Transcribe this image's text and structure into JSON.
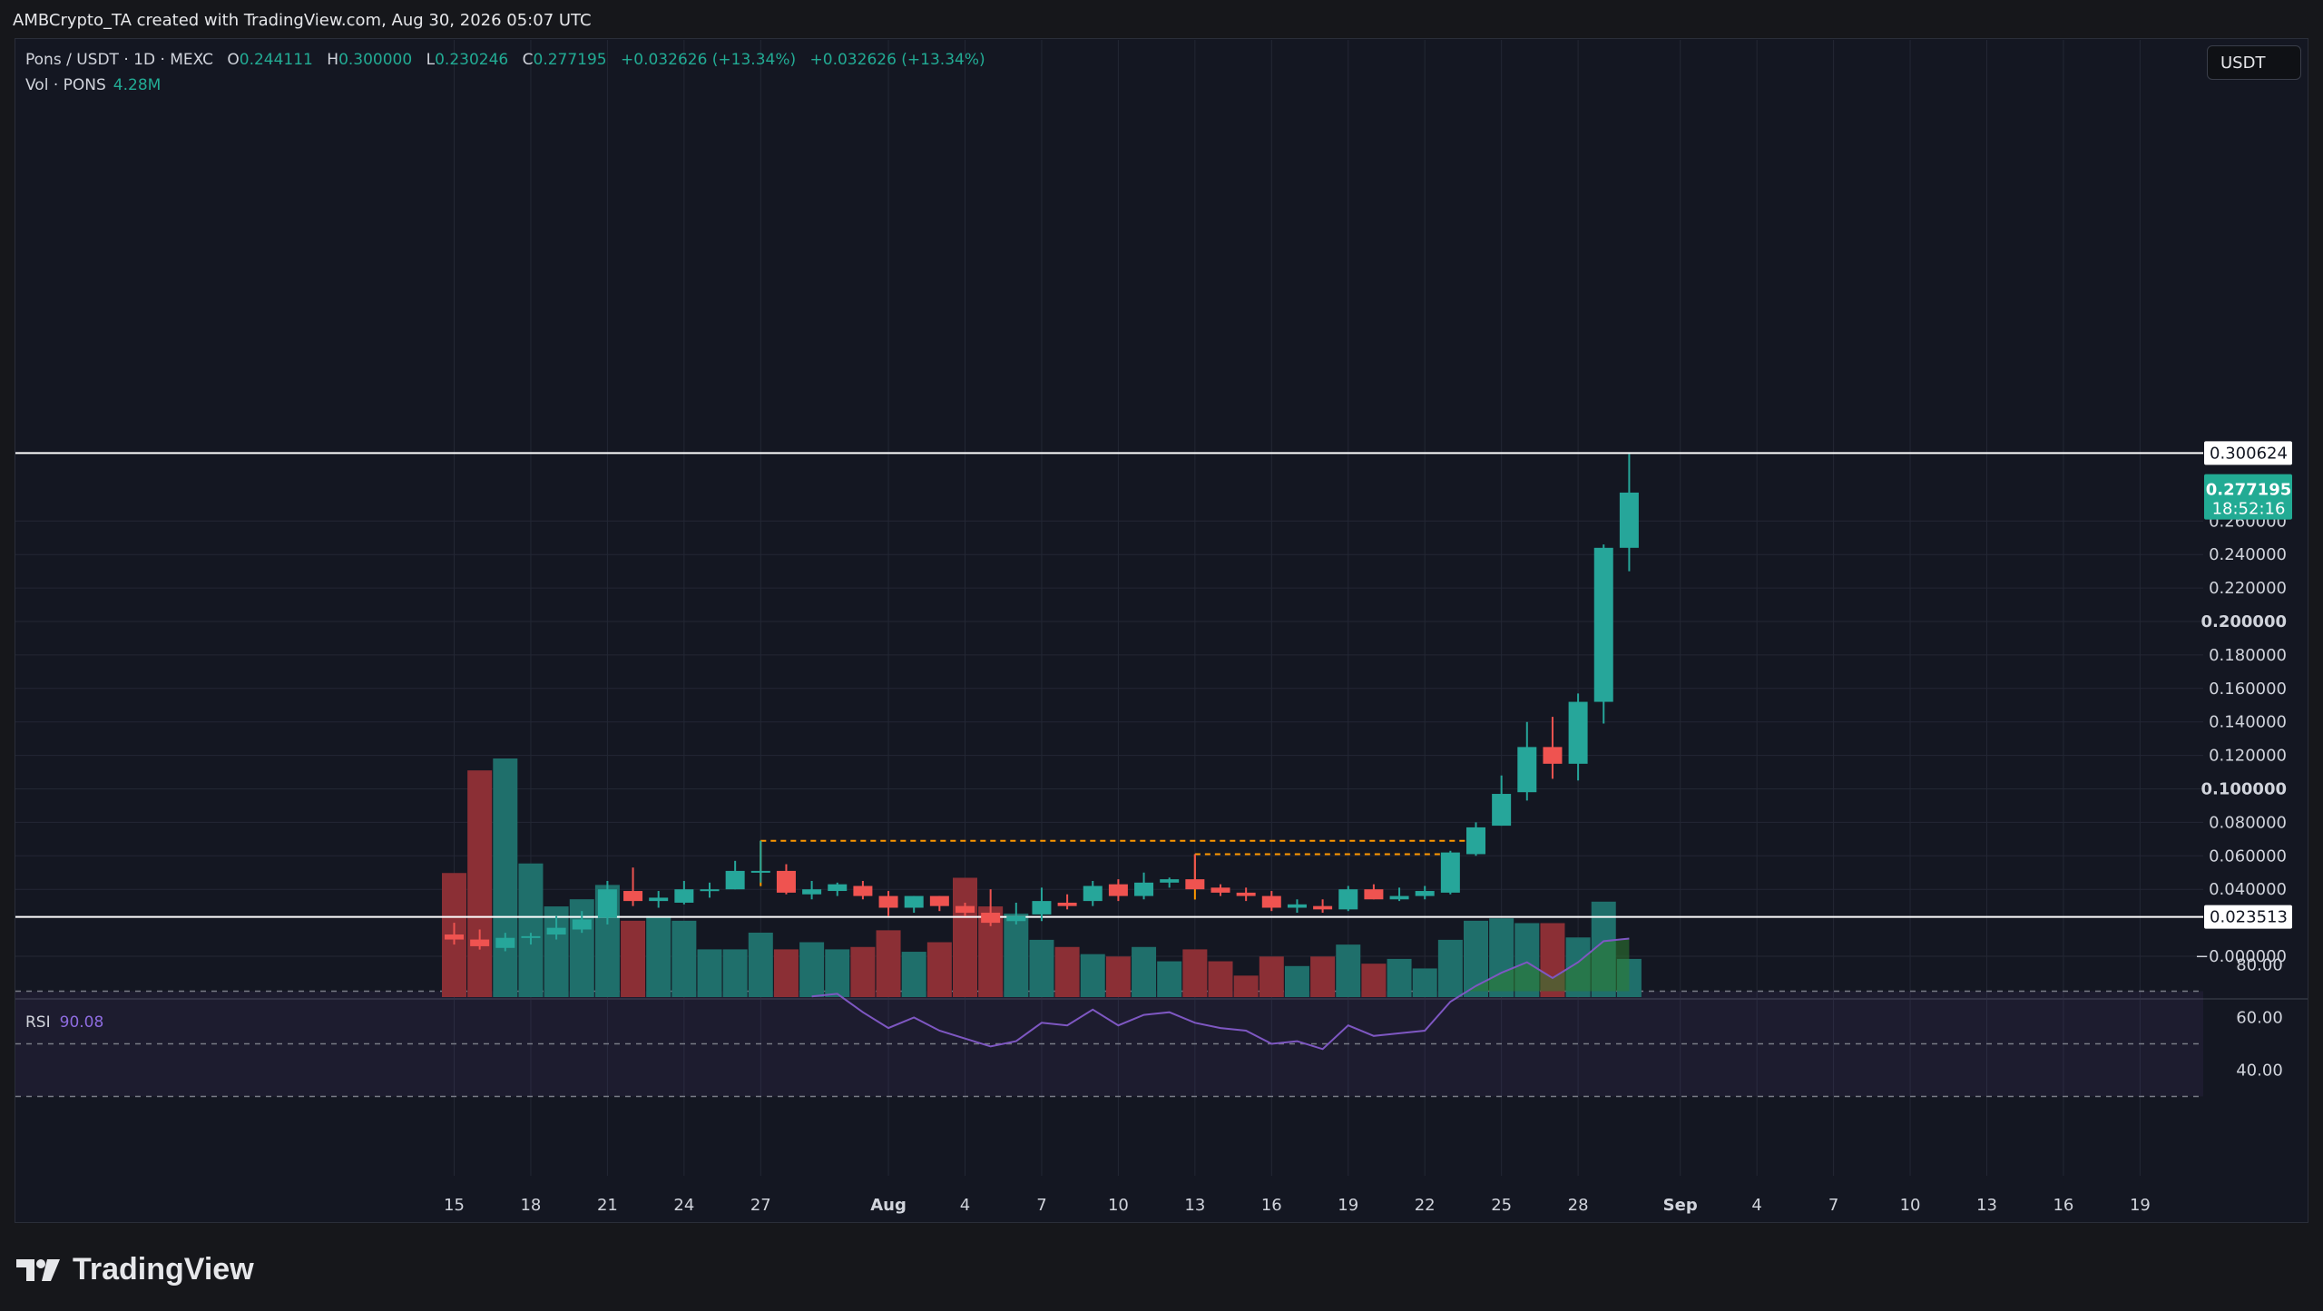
{
  "header": {
    "creator_line": "AMBCrypto_TA created with TradingView.com, Aug 30, 2026 05:07 UTC"
  },
  "legend": {
    "symbol": "Pons / USDT · 1D · MEXC",
    "o_label": "O",
    "o": "0.244111",
    "h_label": "H",
    "h": "0.300000",
    "l_label": "L",
    "l": "0.230246",
    "c_label": "C",
    "c": "0.277195",
    "change": "+0.032626 (+13.34%)",
    "change2": "+0.032626 (+13.34%)",
    "vol_label": "Vol · PONS",
    "vol_value": "4.28M"
  },
  "rsi_legend": {
    "label": "RSI",
    "value": "90.08"
  },
  "currency_button": "USDT",
  "brand": "TradingView",
  "colors": {
    "up": "#26a69a",
    "down": "#ef5350",
    "vol_up": "#1f6f6b",
    "vol_down": "#8b2f35",
    "rsi": "#7e57c2",
    "level": "#ffffff",
    "box": "#ff9800"
  },
  "chart_data": [
    {
      "type": "candlestick",
      "price_axis_labels": [
        "0.260000",
        "0.240000",
        "0.220000",
        "0.200000",
        "0.180000",
        "0.160000",
        "0.140000",
        "0.120000",
        "0.100000",
        "0.080000",
        "0.060000",
        "0.040000",
        "−0.000000"
      ],
      "price_axis_values": [
        0.26,
        0.24,
        0.22,
        0.2,
        0.18,
        0.16,
        0.14,
        0.12,
        0.1,
        0.08,
        0.06,
        0.04,
        0.0
      ],
      "time_ticks": [
        {
          "label": "15",
          "day": 15
        },
        {
          "label": "18",
          "day": 18
        },
        {
          "label": "21",
          "day": 21
        },
        {
          "label": "24",
          "day": 24
        },
        {
          "label": "27",
          "day": 27
        },
        {
          "label": "Aug",
          "day": 32
        },
        {
          "label": "4",
          "day": 35
        },
        {
          "label": "7",
          "day": 38
        },
        {
          "label": "10",
          "day": 41
        },
        {
          "label": "13",
          "day": 44
        },
        {
          "label": "16",
          "day": 47
        },
        {
          "label": "19",
          "day": 50
        },
        {
          "label": "22",
          "day": 53
        },
        {
          "label": "25",
          "day": 56
        },
        {
          "label": "28",
          "day": 59
        },
        {
          "label": "Sep",
          "day": 63
        },
        {
          "label": "4",
          "day": 66
        },
        {
          "label": "7",
          "day": 69
        },
        {
          "label": "10",
          "day": 72
        },
        {
          "label": "13",
          "day": 75
        },
        {
          "label": "16",
          "day": 78
        },
        {
          "label": "19",
          "day": 81
        }
      ],
      "horizontal_levels": [
        {
          "label": "0.300624",
          "value": 0.300624
        },
        {
          "label": "0.023513",
          "value": 0.023513
        }
      ],
      "last_price": {
        "label": "0.277195",
        "countdown": "18:52:16",
        "value": 0.277195
      },
      "candles": [
        {
          "day": 15,
          "o": 0.013,
          "h": 0.02,
          "l": 0.007,
          "c": 0.01,
          "v": 0.52
        },
        {
          "day": 16,
          "o": 0.01,
          "h": 0.016,
          "l": 0.004,
          "c": 0.006,
          "v": 0.95
        },
        {
          "day": 17,
          "o": 0.005,
          "h": 0.014,
          "l": 0.003,
          "c": 0.011,
          "v": 1.0
        },
        {
          "day": 18,
          "o": 0.011,
          "h": 0.014,
          "l": 0.007,
          "c": 0.012,
          "v": 0.56
        },
        {
          "day": 19,
          "o": 0.013,
          "h": 0.024,
          "l": 0.01,
          "c": 0.017,
          "v": 0.38
        },
        {
          "day": 20,
          "o": 0.016,
          "h": 0.027,
          "l": 0.014,
          "c": 0.022,
          "v": 0.41
        },
        {
          "day": 21,
          "o": 0.023,
          "h": 0.045,
          "l": 0.019,
          "c": 0.04,
          "v": 0.47
        },
        {
          "day": 22,
          "o": 0.039,
          "h": 0.053,
          "l": 0.03,
          "c": 0.033,
          "v": 0.32
        },
        {
          "day": 23,
          "o": 0.033,
          "h": 0.039,
          "l": 0.029,
          "c": 0.035,
          "v": 0.34
        },
        {
          "day": 24,
          "o": 0.032,
          "h": 0.045,
          "l": 0.031,
          "c": 0.04,
          "v": 0.32
        },
        {
          "day": 25,
          "o": 0.04,
          "h": 0.044,
          "l": 0.035,
          "c": 0.04,
          "v": 0.2
        },
        {
          "day": 26,
          "o": 0.04,
          "h": 0.057,
          "l": 0.04,
          "c": 0.051,
          "v": 0.2
        },
        {
          "day": 27,
          "o": 0.051,
          "h": 0.069,
          "l": 0.044,
          "c": 0.051,
          "v": 0.27
        },
        {
          "day": 28,
          "o": 0.051,
          "h": 0.055,
          "l": 0.037,
          "c": 0.038,
          "v": 0.2
        },
        {
          "day": 29,
          "o": 0.037,
          "h": 0.045,
          "l": 0.034,
          "c": 0.04,
          "v": 0.23
        },
        {
          "day": 30,
          "o": 0.039,
          "h": 0.044,
          "l": 0.036,
          "c": 0.043,
          "v": 0.2
        },
        {
          "day": 31,
          "o": 0.042,
          "h": 0.045,
          "l": 0.034,
          "c": 0.036,
          "v": 0.21
        },
        {
          "day": 32,
          "o": 0.036,
          "h": 0.039,
          "l": 0.024,
          "c": 0.029,
          "v": 0.28
        },
        {
          "day": 33,
          "o": 0.029,
          "h": 0.036,
          "l": 0.026,
          "c": 0.036,
          "v": 0.19
        },
        {
          "day": 34,
          "o": 0.036,
          "h": 0.036,
          "l": 0.027,
          "c": 0.03,
          "v": 0.23
        },
        {
          "day": 35,
          "o": 0.03,
          "h": 0.032,
          "l": 0.024,
          "c": 0.026,
          "v": 0.5
        },
        {
          "day": 36,
          "o": 0.026,
          "h": 0.04,
          "l": 0.018,
          "c": 0.02,
          "v": 0.38
        },
        {
          "day": 37,
          "o": 0.021,
          "h": 0.032,
          "l": 0.019,
          "c": 0.024,
          "v": 0.35
        },
        {
          "day": 38,
          "o": 0.025,
          "h": 0.041,
          "l": 0.021,
          "c": 0.033,
          "v": 0.24
        },
        {
          "day": 39,
          "o": 0.032,
          "h": 0.037,
          "l": 0.028,
          "c": 0.03,
          "v": 0.21
        },
        {
          "day": 40,
          "o": 0.033,
          "h": 0.045,
          "l": 0.03,
          "c": 0.042,
          "v": 0.18
        },
        {
          "day": 41,
          "o": 0.043,
          "h": 0.046,
          "l": 0.033,
          "c": 0.036,
          "v": 0.17
        },
        {
          "day": 42,
          "o": 0.036,
          "h": 0.05,
          "l": 0.034,
          "c": 0.044,
          "v": 0.21
        },
        {
          "day": 43,
          "o": 0.044,
          "h": 0.047,
          "l": 0.041,
          "c": 0.046,
          "v": 0.15
        },
        {
          "day": 44,
          "o": 0.046,
          "h": 0.061,
          "l": 0.04,
          "c": 0.04,
          "v": 0.2
        },
        {
          "day": 45,
          "o": 0.041,
          "h": 0.043,
          "l": 0.036,
          "c": 0.038,
          "v": 0.15
        },
        {
          "day": 46,
          "o": 0.038,
          "h": 0.041,
          "l": 0.033,
          "c": 0.036,
          "v": 0.09
        },
        {
          "day": 47,
          "o": 0.036,
          "h": 0.039,
          "l": 0.027,
          "c": 0.029,
          "v": 0.17
        },
        {
          "day": 48,
          "o": 0.029,
          "h": 0.034,
          "l": 0.026,
          "c": 0.031,
          "v": 0.13
        },
        {
          "day": 49,
          "o": 0.03,
          "h": 0.034,
          "l": 0.026,
          "c": 0.028,
          "v": 0.17
        },
        {
          "day": 50,
          "o": 0.028,
          "h": 0.042,
          "l": 0.027,
          "c": 0.04,
          "v": 0.22
        },
        {
          "day": 51,
          "o": 0.04,
          "h": 0.043,
          "l": 0.034,
          "c": 0.034,
          "v": 0.14
        },
        {
          "day": 52,
          "o": 0.034,
          "h": 0.041,
          "l": 0.033,
          "c": 0.036,
          "v": 0.16
        },
        {
          "day": 53,
          "o": 0.036,
          "h": 0.042,
          "l": 0.034,
          "c": 0.039,
          "v": 0.12
        },
        {
          "day": 54,
          "o": 0.038,
          "h": 0.063,
          "l": 0.037,
          "c": 0.062,
          "v": 0.24
        },
        {
          "day": 55,
          "o": 0.061,
          "h": 0.08,
          "l": 0.06,
          "c": 0.077,
          "v": 0.32
        },
        {
          "day": 56,
          "o": 0.078,
          "h": 0.108,
          "l": 0.078,
          "c": 0.097,
          "v": 0.33
        },
        {
          "day": 57,
          "o": 0.098,
          "h": 0.14,
          "l": 0.093,
          "c": 0.125,
          "v": 0.31
        },
        {
          "day": 58,
          "o": 0.125,
          "h": 0.143,
          "l": 0.106,
          "c": 0.115,
          "v": 0.31
        },
        {
          "day": 59,
          "o": 0.115,
          "h": 0.157,
          "l": 0.105,
          "c": 0.152,
          "v": 0.25
        },
        {
          "day": 60,
          "o": 0.152,
          "h": 0.246,
          "l": 0.139,
          "c": 0.244,
          "v": 0.4
        },
        {
          "day": 61,
          "o": 0.244,
          "h": 0.3,
          "l": 0.23,
          "c": 0.277,
          "v": 0.16
        }
      ],
      "dashed_boxes": [
        {
          "from_day": 27,
          "to_day": 55,
          "value": 0.069
        },
        {
          "from_day": 44,
          "to_day": 54,
          "value": 0.061
        }
      ]
    },
    {
      "type": "line",
      "title": "RSI",
      "axis_labels": [
        "80.00",
        "60.00",
        "40.00"
      ],
      "axis_values": [
        80,
        60,
        40
      ],
      "bands": [
        70,
        50,
        30
      ],
      "x": [
        29,
        30,
        31,
        32,
        33,
        34,
        35,
        36,
        37,
        38,
        39,
        40,
        41,
        42,
        43,
        44,
        45,
        46,
        47,
        48,
        49,
        50,
        51,
        52,
        53,
        54,
        55,
        56,
        57,
        58,
        59,
        60,
        61
      ],
      "values": [
        68,
        69,
        62,
        56,
        60,
        55,
        52,
        49,
        51,
        58,
        57,
        63,
        57,
        61,
        62,
        58,
        56,
        55,
        50,
        51,
        48,
        57,
        53,
        54,
        55,
        66,
        72,
        77,
        81,
        75,
        81,
        89,
        90
      ]
    }
  ]
}
